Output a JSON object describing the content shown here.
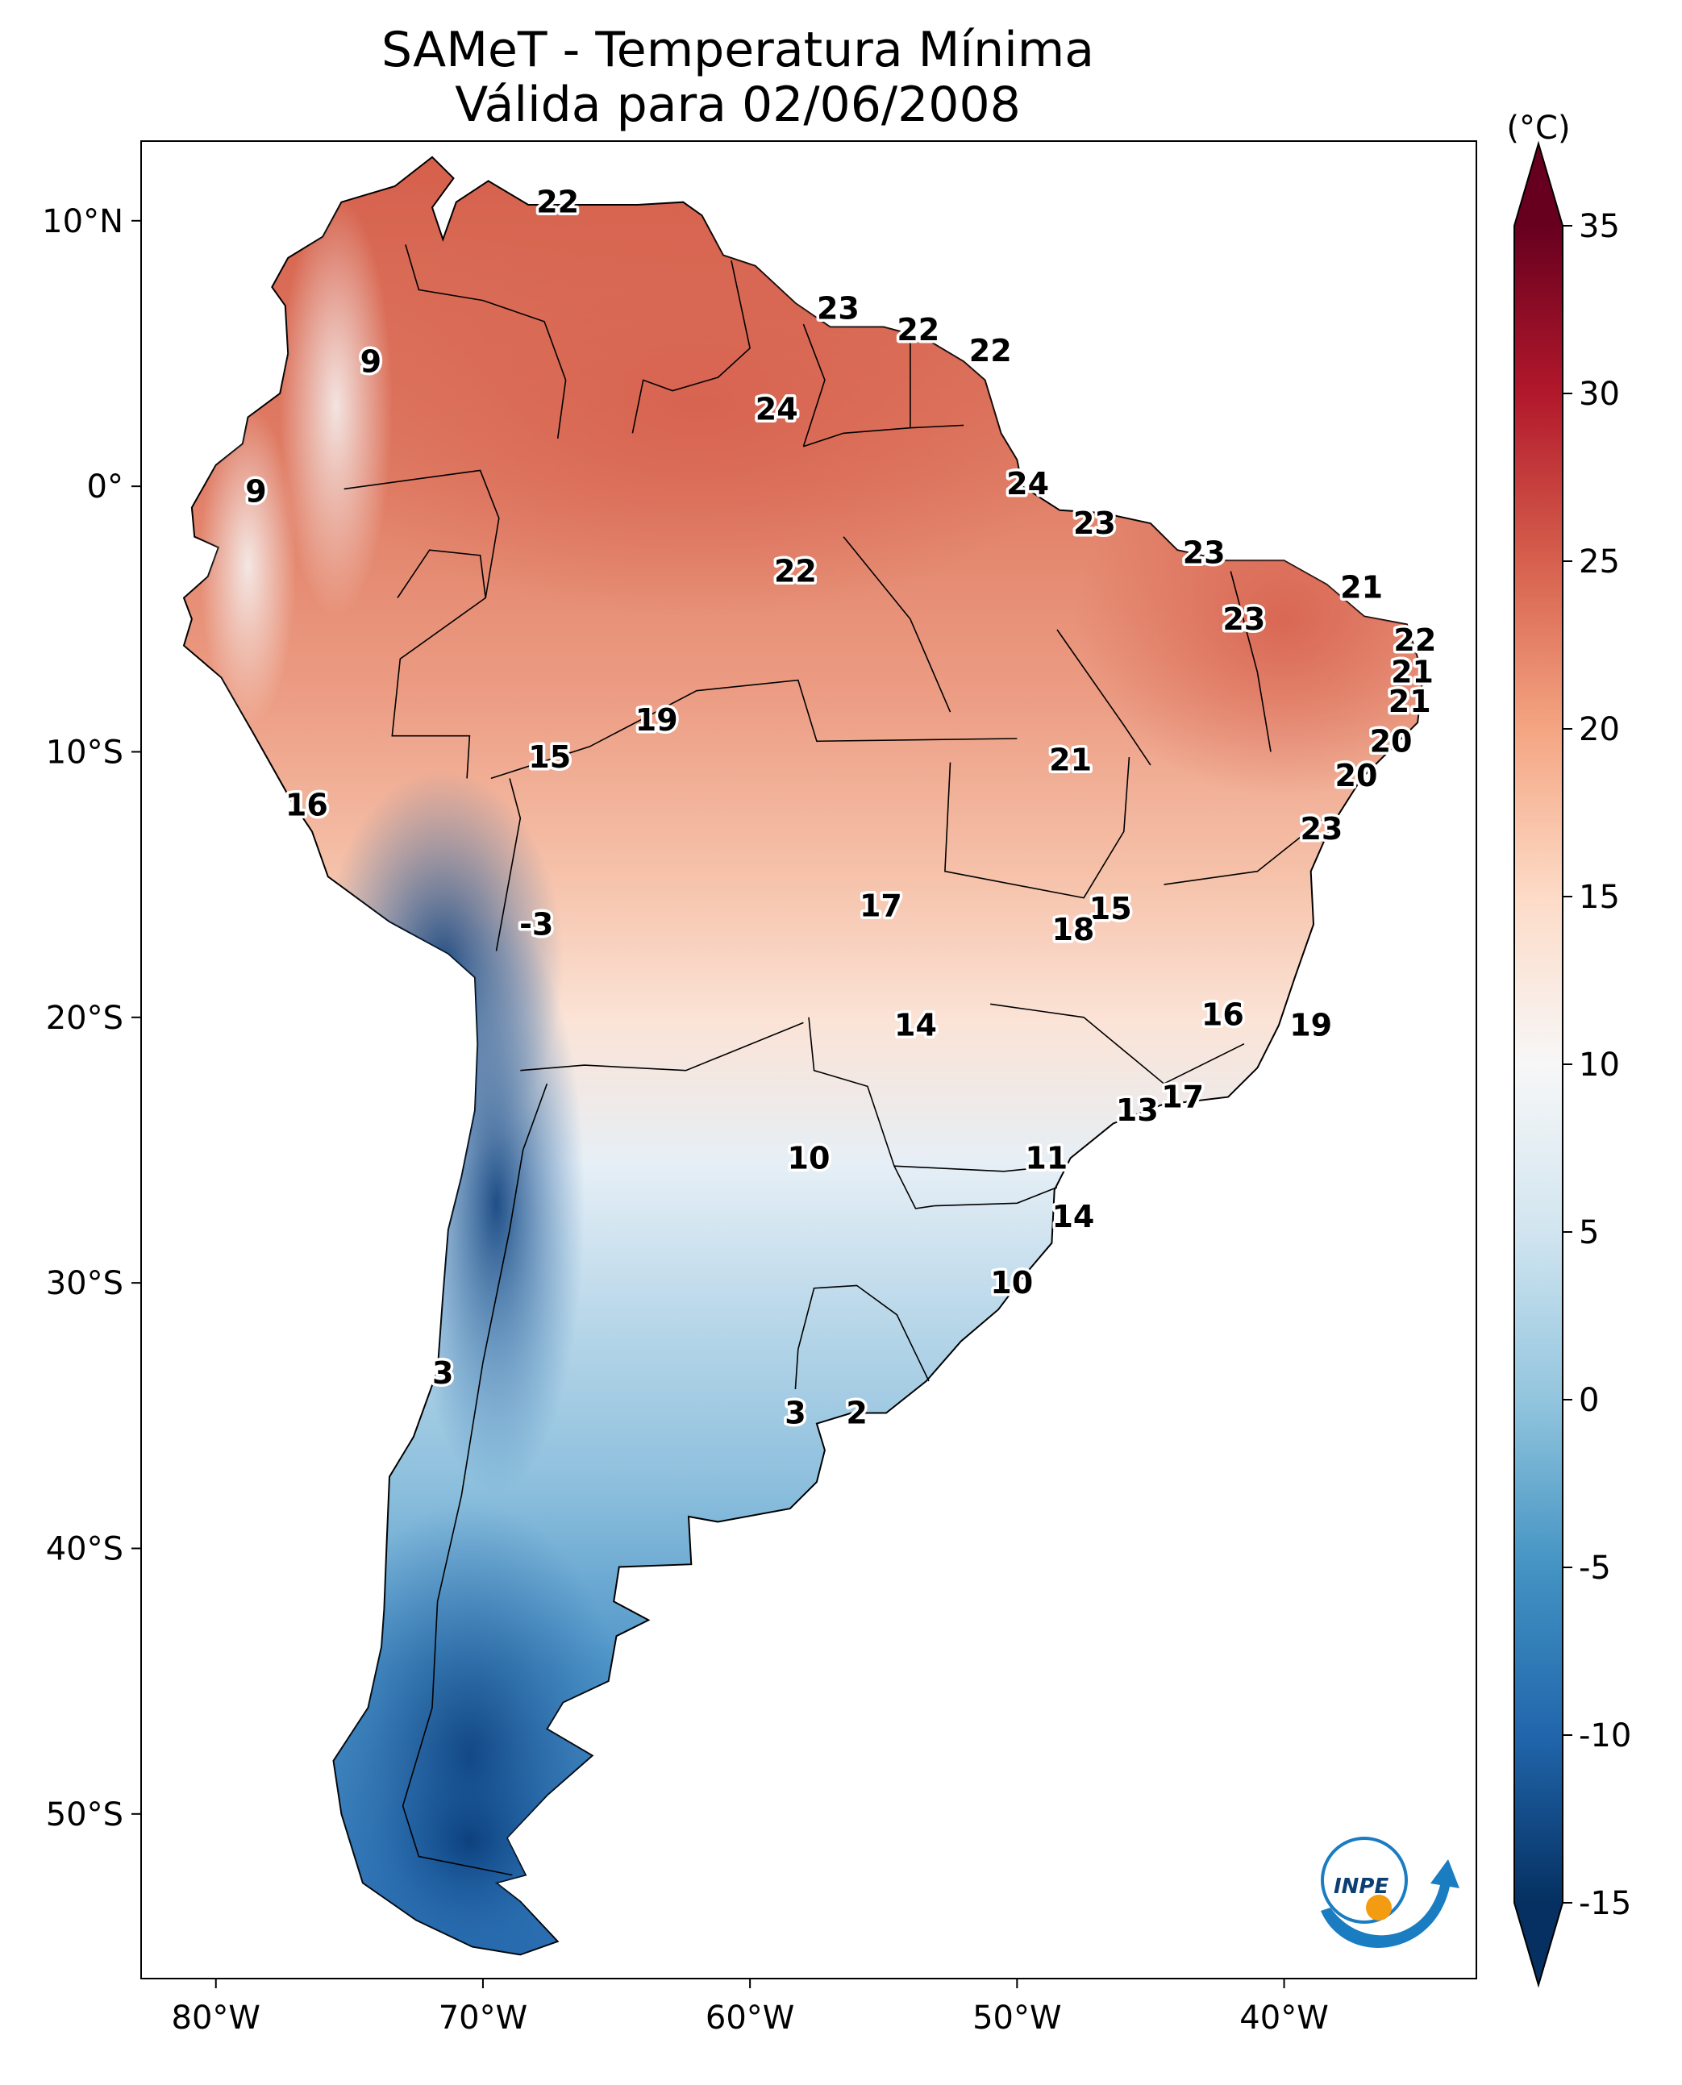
{
  "title": {
    "line1": "SAMeT - Temperatura Mínima",
    "line2": "Válida para 02/06/2008"
  },
  "map": {
    "lon_ticks": [
      {
        "lon": -80,
        "label": "80°W"
      },
      {
        "lon": -70,
        "label": "70°W"
      },
      {
        "lon": -60,
        "label": "60°W"
      },
      {
        "lon": -50,
        "label": "50°W"
      },
      {
        "lon": -40,
        "label": "40°W"
      }
    ],
    "lat_ticks": [
      {
        "lat": 10,
        "label": "10°N"
      },
      {
        "lat": 0,
        "label": "0°"
      },
      {
        "lat": -10,
        "label": "10°S"
      },
      {
        "lat": -20,
        "label": "20°S"
      },
      {
        "lat": -30,
        "label": "30°S"
      },
      {
        "lat": -40,
        "label": "40°S"
      },
      {
        "lat": -50,
        "label": "50°S"
      }
    ],
    "extent": {
      "lon_min": -82.8,
      "lon_max": -32.8,
      "lat_min": -56.2,
      "lat_max": 13.0
    }
  },
  "labels": [
    {
      "lon": -67.2,
      "lat": 10.7,
      "text": "22"
    },
    {
      "lon": -74.2,
      "lat": 4.7,
      "text": "9"
    },
    {
      "lon": -56.7,
      "lat": 6.7,
      "text": "23"
    },
    {
      "lon": -53.7,
      "lat": 5.9,
      "text": "22"
    },
    {
      "lon": -51.0,
      "lat": 5.1,
      "text": "22"
    },
    {
      "lon": -59.0,
      "lat": 2.9,
      "text": "24"
    },
    {
      "lon": -78.5,
      "lat": -0.2,
      "text": "9"
    },
    {
      "lon": -49.6,
      "lat": 0.1,
      "text": "24"
    },
    {
      "lon": -47.1,
      "lat": -1.4,
      "text": "23"
    },
    {
      "lon": -43.0,
      "lat": -2.5,
      "text": "23"
    },
    {
      "lon": -58.3,
      "lat": -3.2,
      "text": "22"
    },
    {
      "lon": -37.1,
      "lat": -3.8,
      "text": "21"
    },
    {
      "lon": -41.5,
      "lat": -5.0,
      "text": "23"
    },
    {
      "lon": -35.1,
      "lat": -5.8,
      "text": "22"
    },
    {
      "lon": -35.2,
      "lat": -7.0,
      "text": "21"
    },
    {
      "lon": -35.3,
      "lat": -8.1,
      "text": "21"
    },
    {
      "lon": -63.5,
      "lat": -8.8,
      "text": "19"
    },
    {
      "lon": -36.0,
      "lat": -9.6,
      "text": "20"
    },
    {
      "lon": -67.5,
      "lat": -10.2,
      "text": "15"
    },
    {
      "lon": -48.0,
      "lat": -10.3,
      "text": "21"
    },
    {
      "lon": -37.3,
      "lat": -10.9,
      "text": "20"
    },
    {
      "lon": -76.6,
      "lat": -12.0,
      "text": "16"
    },
    {
      "lon": -38.6,
      "lat": -12.9,
      "text": "23"
    },
    {
      "lon": -55.1,
      "lat": -15.8,
      "text": "17"
    },
    {
      "lon": -46.5,
      "lat": -15.9,
      "text": "15"
    },
    {
      "lon": -47.9,
      "lat": -16.7,
      "text": "18"
    },
    {
      "lon": -68.0,
      "lat": -16.5,
      "text": "-3"
    },
    {
      "lon": -42.3,
      "lat": -19.9,
      "text": "16"
    },
    {
      "lon": -39.0,
      "lat": -20.3,
      "text": "19"
    },
    {
      "lon": -53.8,
      "lat": -20.3,
      "text": "14"
    },
    {
      "lon": -43.8,
      "lat": -23.0,
      "text": "17"
    },
    {
      "lon": -45.5,
      "lat": -23.5,
      "text": "13"
    },
    {
      "lon": -57.8,
      "lat": -25.3,
      "text": "10"
    },
    {
      "lon": -48.9,
      "lat": -25.3,
      "text": "11"
    },
    {
      "lon": -47.9,
      "lat": -27.5,
      "text": "14"
    },
    {
      "lon": -50.2,
      "lat": -30.0,
      "text": "10"
    },
    {
      "lon": -71.5,
      "lat": -33.4,
      "text": "3"
    },
    {
      "lon": -58.3,
      "lat": -34.9,
      "text": "3"
    },
    {
      "lon": -56.0,
      "lat": -34.9,
      "text": "2"
    }
  ],
  "colorbar": {
    "unit": "(°C)",
    "ticks": [
      "35",
      "30",
      "25",
      "20",
      "15",
      "10",
      "5",
      "0",
      "-5",
      "-10",
      "-15"
    ],
    "range": [
      -15,
      35
    ],
    "colors": [
      "#053061",
      "#2166ac",
      "#4393c3",
      "#92c5de",
      "#d1e5f0",
      "#f7f7f7",
      "#fddbc7",
      "#f4a582",
      "#d6604d",
      "#b2182b",
      "#67001f"
    ]
  },
  "logo": {
    "text": "INPE"
  }
}
